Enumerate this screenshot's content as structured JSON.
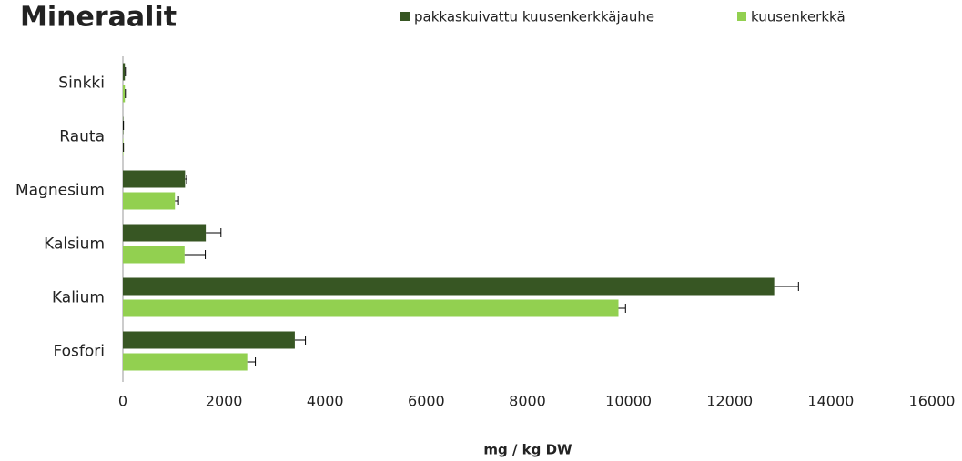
{
  "chart_data": {
    "type": "bar",
    "orientation": "horizontal",
    "title": "Mineraalit",
    "x_label": "mg / kg DW",
    "categories": [
      "Sinkki",
      "Rauta",
      "Magnesium",
      "Kalsium",
      "Kalium",
      "Fosfori"
    ],
    "series": [
      {
        "name": "pakkaskuivattu kuusenkerkkäjauhe",
        "color": "#375623",
        "values": [
          40,
          10,
          1230,
          1640,
          12880,
          3400
        ],
        "errors": [
          10,
          2,
          30,
          300,
          480,
          210
        ]
      },
      {
        "name": "kuusenkerkkä",
        "color": "#92d050",
        "values": [
          40,
          10,
          1030,
          1220,
          9800,
          2460
        ],
        "errors": [
          10,
          2,
          70,
          410,
          140,
          160
        ]
      }
    ],
    "xlim": [
      0,
      16000
    ],
    "xticks": [
      0,
      2000,
      4000,
      6000,
      8000,
      10000,
      12000,
      14000,
      16000
    ],
    "grid": false,
    "legend": "top"
  }
}
